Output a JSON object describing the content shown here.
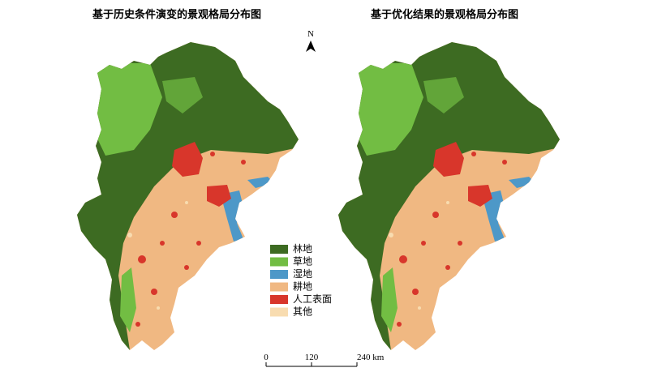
{
  "left_map": {
    "title": "基于历史条件演变的景观格局分布图"
  },
  "right_map": {
    "title": "基于优化结果的景观格局分布图"
  },
  "north_arrow": "N",
  "legend": [
    {
      "label": "林地",
      "color": "#3d6b22"
    },
    {
      "label": "草地",
      "color": "#72bd43"
    },
    {
      "label": "湿地",
      "color": "#4d98c8"
    },
    {
      "label": "耕地",
      "color": "#f0b882"
    },
    {
      "label": "人工表面",
      "color": "#d8362b"
    },
    {
      "label": "其他",
      "color": "#f8dcb0"
    }
  ],
  "scale_bar": {
    "labels": [
      "0",
      "120",
      "240 km"
    ]
  }
}
